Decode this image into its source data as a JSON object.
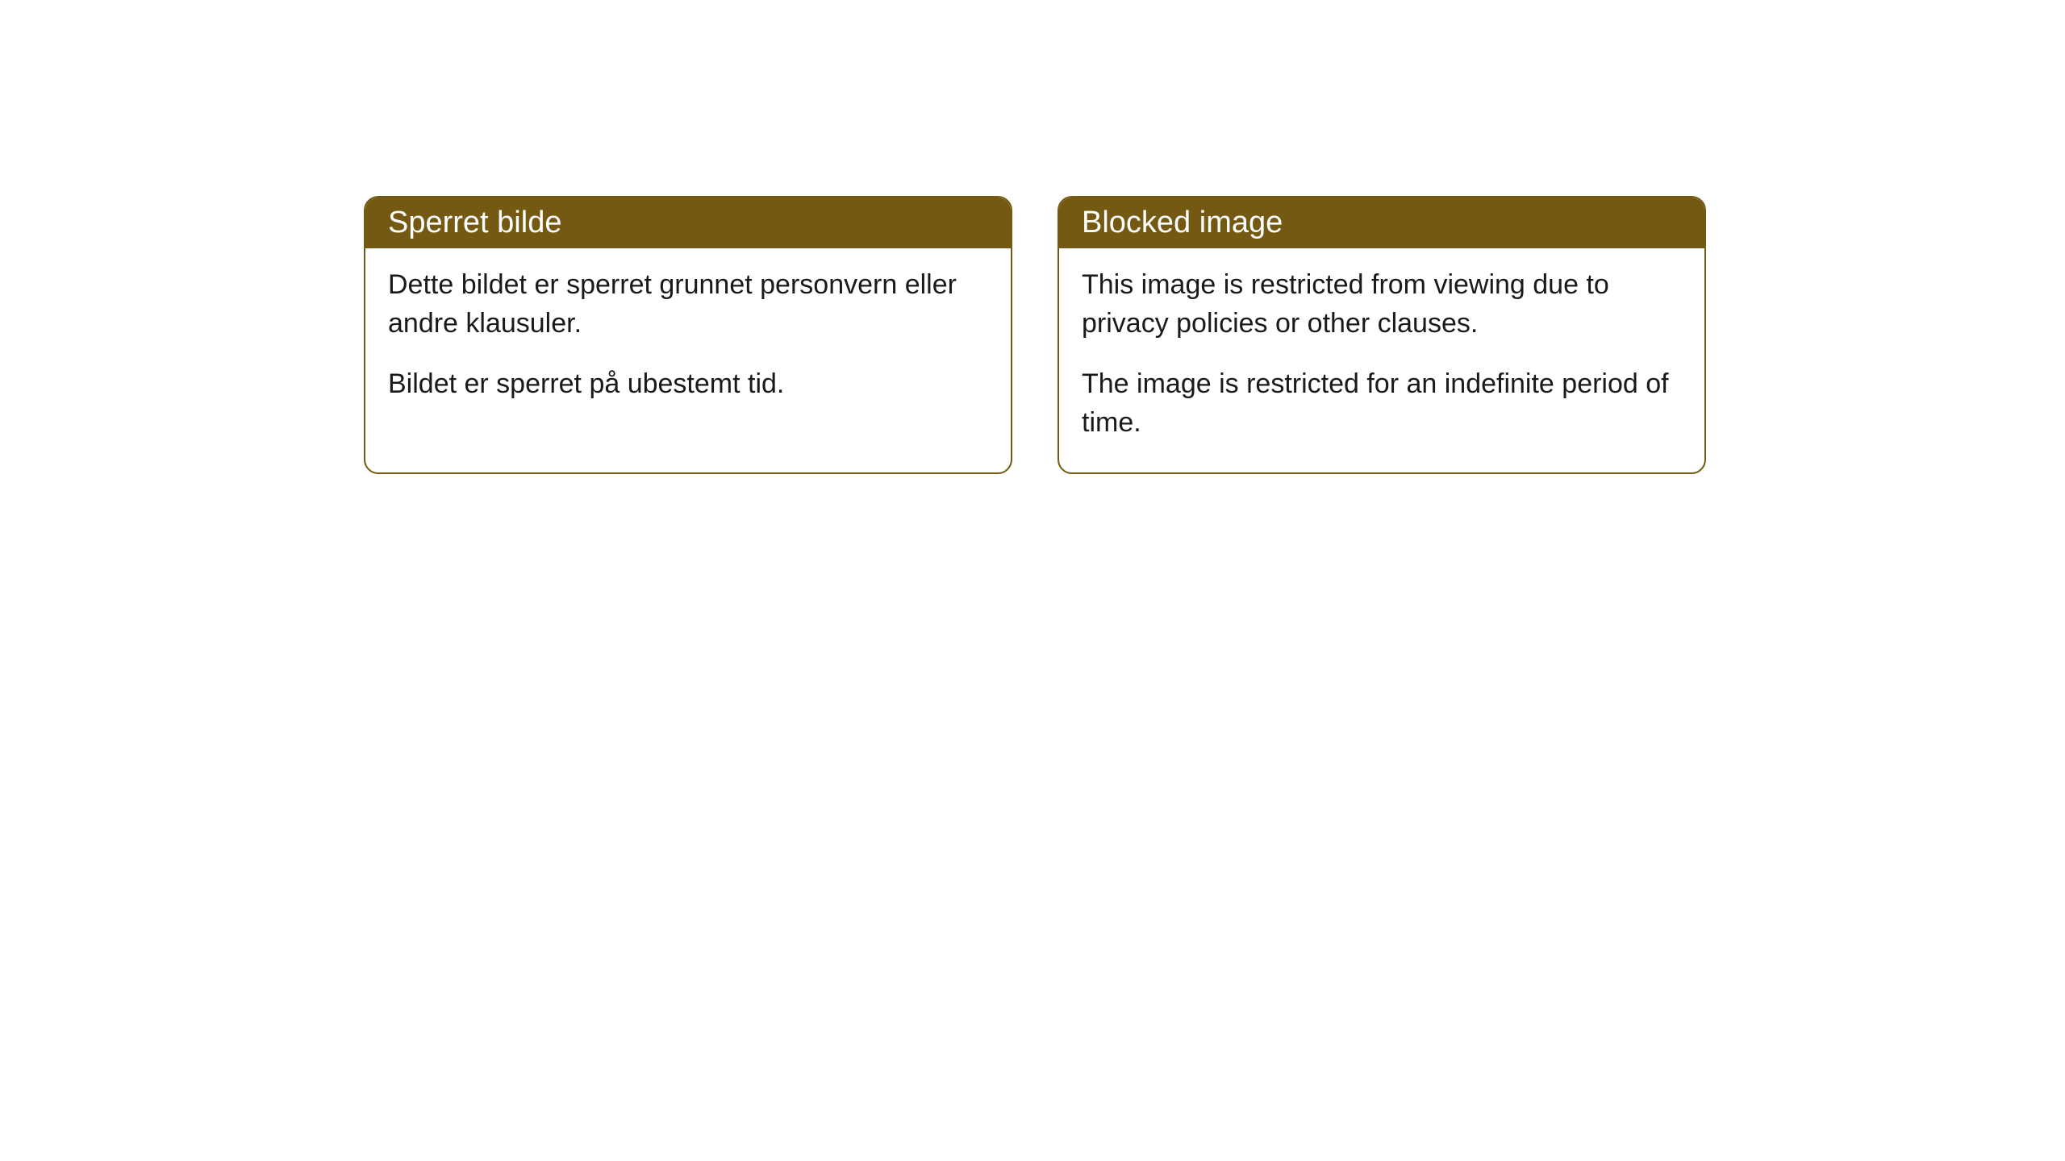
{
  "cards": [
    {
      "title": "Sperret bilde",
      "paragraphs": [
        "Dette bildet er sperret grunnet personvern eller andre klausuler.",
        "Bildet er sperret på ubestemt tid."
      ]
    },
    {
      "title": "Blocked image",
      "paragraphs": [
        "This image is restricted from viewing due to privacy policies or other clauses.",
        "The image is restricted for an indefinite period of time."
      ]
    }
  ],
  "styling": {
    "header_bg_color": "#745912",
    "header_text_color": "#ffffff",
    "border_color": "#745912",
    "body_text_color": "#1a1a1a",
    "card_bg_color": "#ffffff",
    "page_bg_color": "#ffffff",
    "border_radius": 18,
    "title_fontsize": 38,
    "body_fontsize": 34
  }
}
